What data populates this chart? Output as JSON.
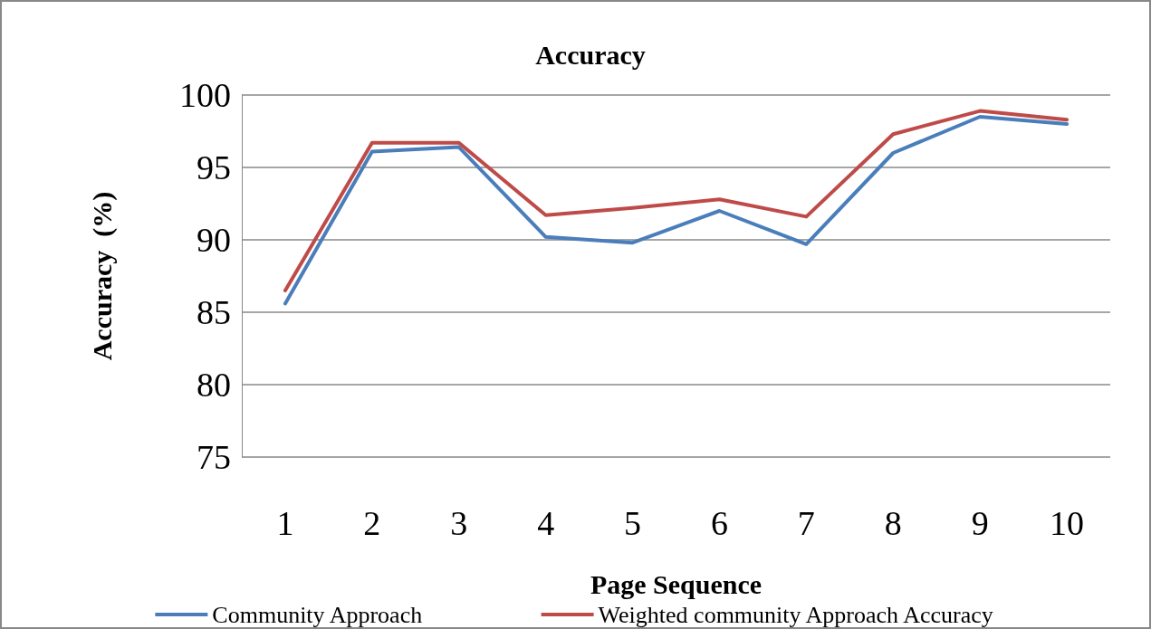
{
  "chart_data": {
    "type": "line",
    "title": "Accuracy",
    "xlabel": "Page Sequence",
    "ylabel": "Accuracy  (%)",
    "categories": [
      "1",
      "2",
      "3",
      "4",
      "5",
      "6",
      "7",
      "8",
      "9",
      "10"
    ],
    "series": [
      {
        "name": "Community Approach",
        "color": "#4a7ebb",
        "values": [
          85.6,
          96.1,
          96.4,
          90.2,
          89.8,
          92.0,
          89.7,
          96.0,
          98.5,
          98.0
        ]
      },
      {
        "name": "Weighted community Approach Accuracy",
        "color": "#be4b48",
        "values": [
          86.5,
          96.7,
          96.7,
          91.7,
          92.2,
          92.8,
          91.6,
          97.3,
          98.9,
          98.3
        ]
      }
    ],
    "ylim": [
      75,
      100
    ],
    "yticks": [
      75,
      80,
      85,
      90,
      95,
      100
    ],
    "grid": "y",
    "legend": "bottom",
    "marker": "none",
    "line_style": "solid"
  }
}
